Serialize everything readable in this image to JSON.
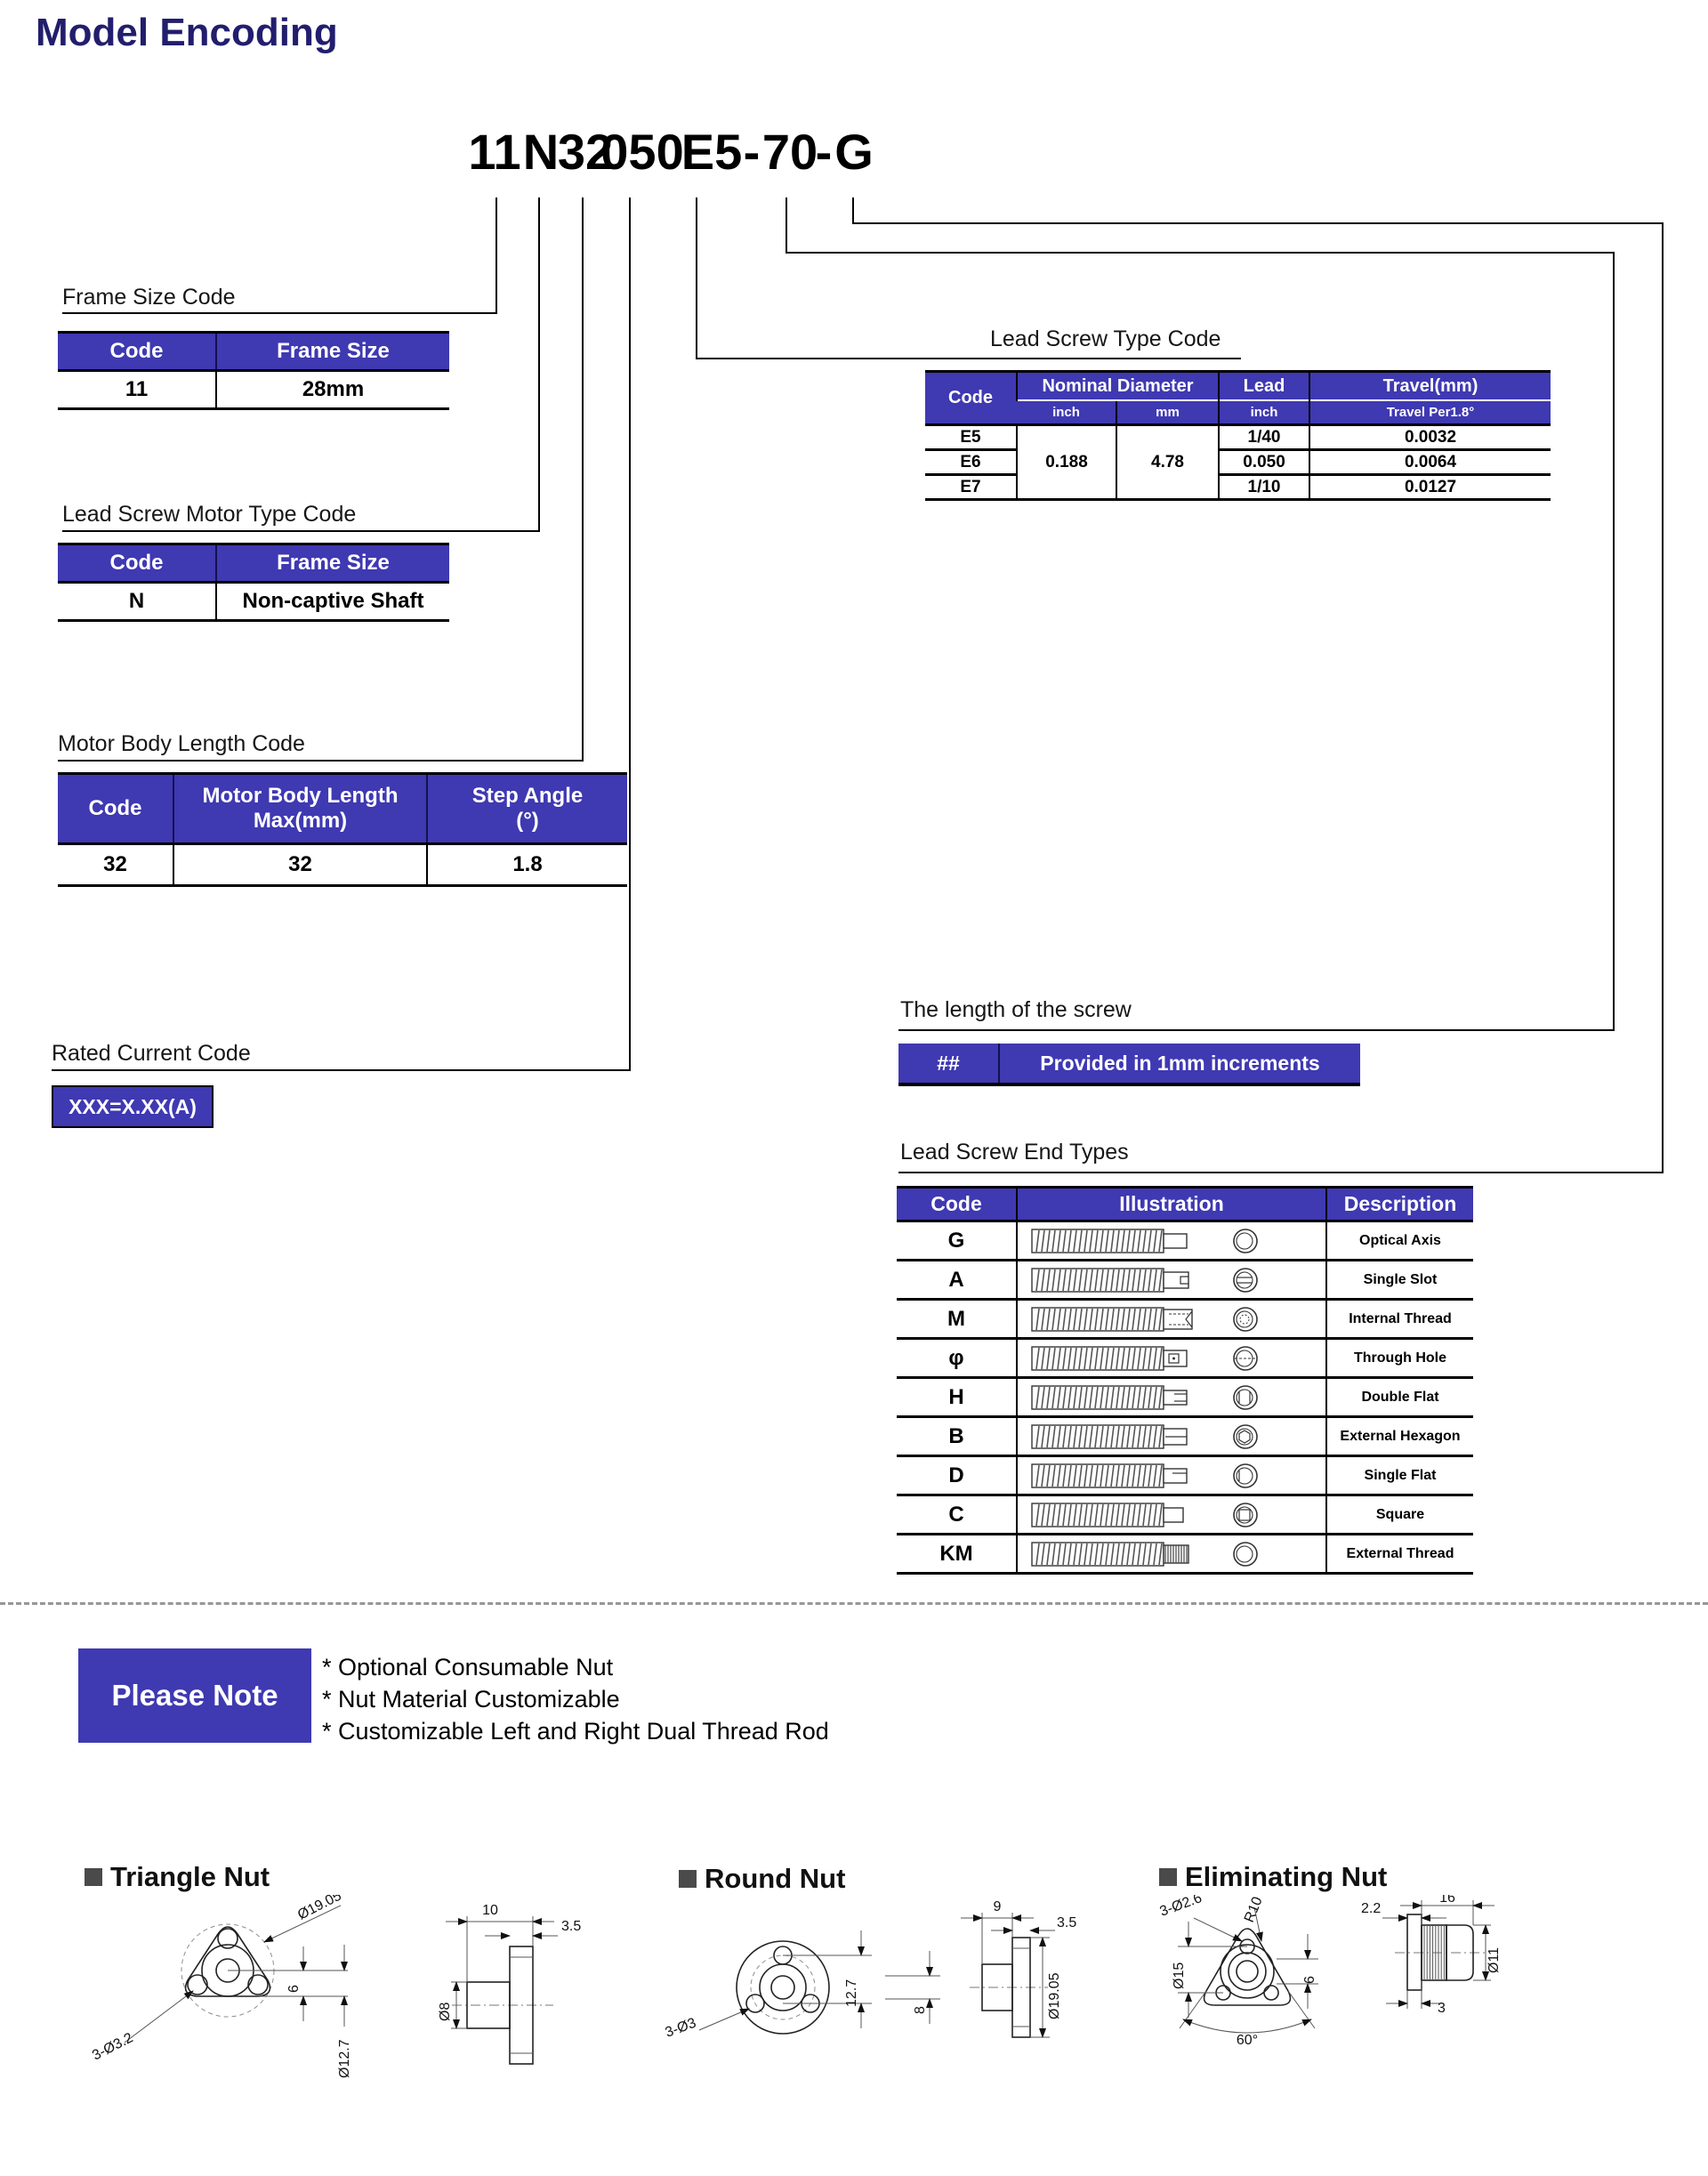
{
  "title": "Model Encoding",
  "model": {
    "segments": [
      "11",
      "N",
      "32",
      "050",
      "E5",
      "-",
      "70",
      "-",
      "G"
    ]
  },
  "frame_size": {
    "label": "Frame Size Code",
    "headers": [
      "Code",
      "Frame Size"
    ],
    "rows": [
      [
        "11",
        "28mm"
      ]
    ]
  },
  "motor_type": {
    "label": "Lead Screw Motor Type Code",
    "headers": [
      "Code",
      "Frame Size"
    ],
    "rows": [
      [
        "N",
        "Non-captive Shaft"
      ]
    ]
  },
  "body_length": {
    "label": "Motor Body Length Code",
    "headers": [
      "Code",
      "Motor Body Length\nMax(mm)",
      "Step Angle\n(°)"
    ],
    "rows": [
      [
        "32",
        "32",
        "1.8"
      ]
    ]
  },
  "rated_current": {
    "label": "Rated Current Code",
    "badge": "XXX=X.XX(A)"
  },
  "screw_type": {
    "label": "Lead Screw Type Code",
    "header": {
      "code": "Code",
      "nominal": "Nominal Diameter",
      "nominal_sub": [
        "inch",
        "mm"
      ],
      "lead": "Lead",
      "lead_sub": "inch",
      "travel": "Travel(mm)",
      "travel_sub": "Travel Per1.8°"
    },
    "nominal_inch": "0.188",
    "nominal_mm": "4.78",
    "rows": [
      {
        "code": "E5",
        "lead": "1/40",
        "travel": "0.0032"
      },
      {
        "code": "E6",
        "lead": "0.050",
        "travel": "0.0064"
      },
      {
        "code": "E7",
        "lead": "1/10",
        "travel": "0.0127"
      }
    ]
  },
  "screw_length": {
    "label": "The length of the screw",
    "code": "##",
    "text": "Provided in 1mm increments"
  },
  "end_types": {
    "label": "Lead Screw End Types",
    "headers": [
      "Code",
      "Illustration",
      "Description"
    ],
    "rows": [
      {
        "code": "G",
        "description": "Optical Axis"
      },
      {
        "code": "A",
        "description": "Single Slot"
      },
      {
        "code": "M",
        "description": "Internal Thread"
      },
      {
        "code": "φ",
        "description": "Through Hole"
      },
      {
        "code": "H",
        "description": "Double Flat"
      },
      {
        "code": "B",
        "description": "External Hexagon"
      },
      {
        "code": "D",
        "description": "Single Flat"
      },
      {
        "code": "C",
        "description": "Square"
      },
      {
        "code": "KM",
        "description": "External Thread"
      }
    ]
  },
  "note": {
    "label": "Please Note",
    "items": [
      "* Optional Consumable Nut",
      "* Nut Material Customizable",
      "* Customizable Left and Right Dual Thread Rod"
    ]
  },
  "drawings": {
    "triangle": {
      "title": "Triangle Nut",
      "dims": {
        "outer": "Ø19.05",
        "holes": "3-Ø3.2",
        "height": "6",
        "bore": "Ø12.7",
        "depth": "10",
        "flange": "3.5",
        "body": "Ø8"
      }
    },
    "round": {
      "title": "Round Nut",
      "dims": {
        "holes": "3-Ø3",
        "pitch": "12.7",
        "height": "8",
        "depth": "9",
        "flange": "3.5",
        "outer": "Ø19.05"
      }
    },
    "eliminating": {
      "title": "Eliminating Nut",
      "dims": {
        "holes": "3-Ø2.6",
        "radius": "R10",
        "pitch": "Ø15",
        "height": "6",
        "angle": "60°",
        "depth": "16",
        "flange": "2.2",
        "dia": "Ø11",
        "offset": "3"
      }
    }
  },
  "colors": {
    "header_blue": "#3F39B2",
    "title_navy": "#221E6D"
  }
}
